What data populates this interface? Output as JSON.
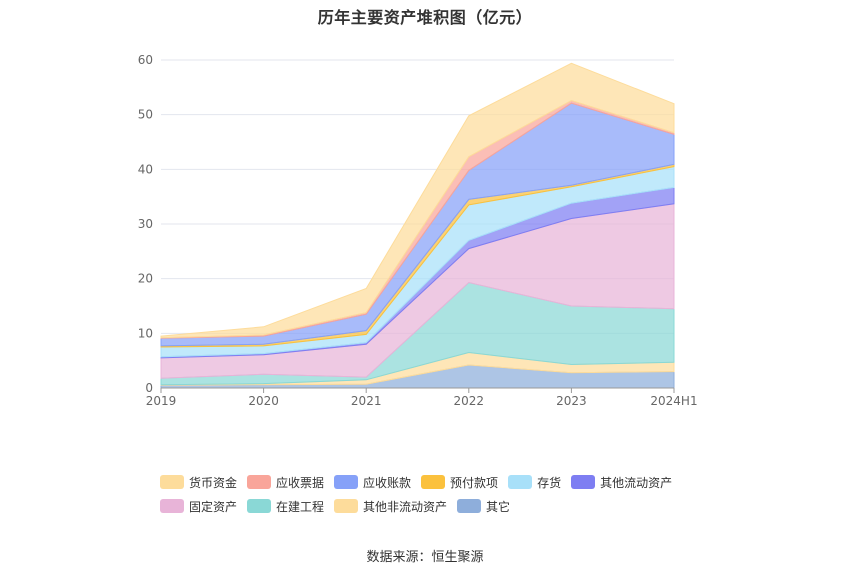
{
  "title": "历年主要资产堆积图（亿元）",
  "source": "数据来源：恒生聚源",
  "chart_data": {
    "type": "area",
    "stacked": true,
    "categories": [
      "2019",
      "2020",
      "2021",
      "2022",
      "2023",
      "2024H1"
    ],
    "ylim": [
      0,
      60
    ],
    "yticks": [
      0,
      10,
      20,
      30,
      40,
      50,
      60
    ],
    "grid": true,
    "legend_position": "bottom",
    "series": [
      {
        "name": "其它",
        "color": "#8eaedb",
        "values": [
          0.5,
          0.6,
          0.7,
          4.2,
          2.8,
          3.0
        ]
      },
      {
        "name": "其他非流动资产",
        "color": "#fddc9b",
        "values": [
          0.1,
          0.2,
          0.8,
          2.3,
          1.5,
          1.7
        ]
      },
      {
        "name": "在建工程",
        "color": "#8ad8d6",
        "values": [
          1.2,
          1.7,
          0.5,
          12.8,
          10.7,
          9.8
        ]
      },
      {
        "name": "固定资产",
        "color": "#e8b4d8",
        "values": [
          3.7,
          3.6,
          6.0,
          6.2,
          16.0,
          19.2
        ]
      },
      {
        "name": "其他流动资产",
        "color": "#7e7ef2",
        "values": [
          0.2,
          0.2,
          0.3,
          1.5,
          2.8,
          3.0
        ]
      },
      {
        "name": "存货",
        "color": "#a8e0f9",
        "values": [
          1.8,
          1.4,
          1.5,
          6.5,
          3.0,
          3.8
        ]
      },
      {
        "name": "预付款项",
        "color": "#fbc13d",
        "values": [
          0.2,
          0.3,
          0.7,
          1.0,
          0.3,
          0.4
        ]
      },
      {
        "name": "应收账款",
        "color": "#86a1f8",
        "values": [
          1.4,
          1.5,
          3.0,
          5.3,
          15.0,
          5.5
        ]
      },
      {
        "name": "应收票据",
        "color": "#f9a59a",
        "values": [
          0.1,
          0.2,
          0.3,
          2.5,
          0.5,
          0.3
        ]
      },
      {
        "name": "货币资金",
        "color": "#fddc9b",
        "values": [
          0.3,
          1.5,
          4.4,
          7.5,
          6.8,
          5.3
        ]
      }
    ]
  },
  "legend": {
    "rows": [
      [
        "货币资金",
        "应收票据",
        "应收账款",
        "预付款项",
        "存货",
        "其他流动资产"
      ],
      [
        "固定资产",
        "在建工程",
        "其他非流动资产",
        "其它"
      ]
    ]
  }
}
